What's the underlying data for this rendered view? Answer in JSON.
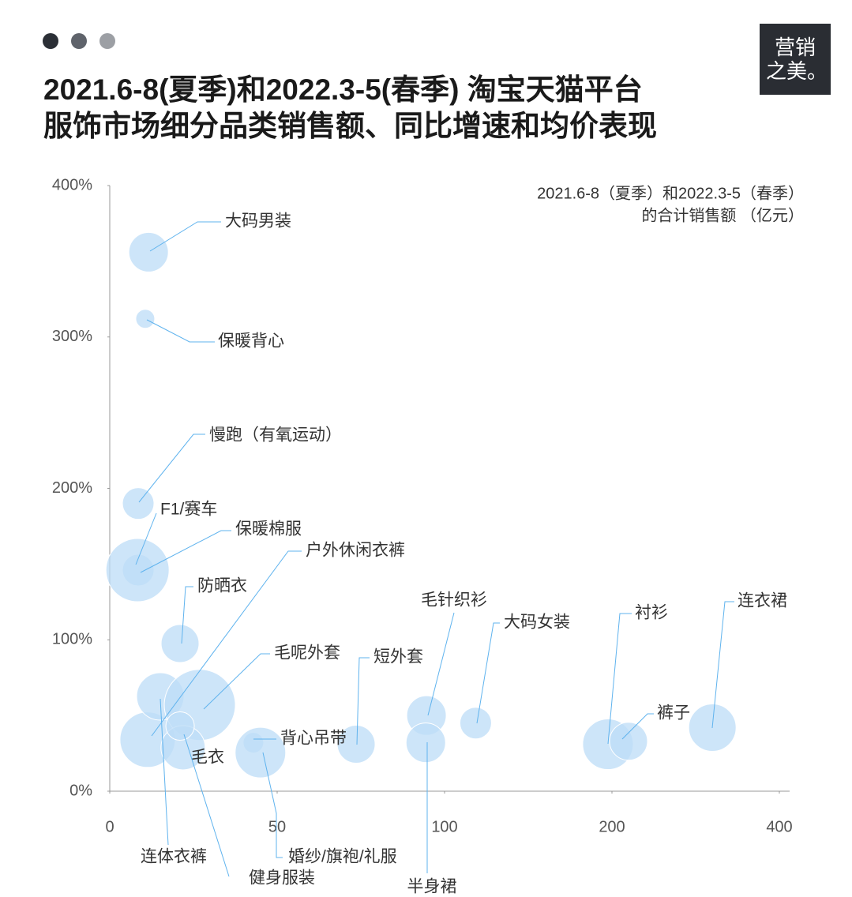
{
  "logo": [
    "营销",
    "之美。"
  ],
  "chart_data": {
    "type": "bubble",
    "title": [
      "2021.6-8(夏季)和2022.3-5(春季) 淘宝天猫平台",
      "服饰市场细分品类销售额、同比增速和均价表现"
    ],
    "note": [
      "2021.6-8（夏季）和2022.3-5（春季）",
      "的合计销售额 （亿元）"
    ],
    "color": "#bcdcf7",
    "categories": [
      "大码男装",
      "保暖背心",
      "慢跑（有氧运动）",
      "F1/赛车",
      "保暖棉服",
      "户外休闲衣裤",
      "防晒衣",
      "连体衣裤",
      "毛呢外套",
      "毛衣",
      "健身服装",
      "背心吊带",
      "婚纱/旗袍/礼服",
      "短外套",
      "毛针织衫",
      "半身裙",
      "大码女装",
      "衬衫",
      "裤子",
      "连衣裙"
    ],
    "x": [
      11.6,
      10.6,
      8.5,
      8.5,
      8.3,
      11.3,
      21,
      15.1,
      26.9,
      21.9,
      21,
      42.9,
      45,
      73.6,
      94.6,
      94.4,
      118.6,
      197.6,
      219.8,
      320
    ],
    "values": [
      356,
      312,
      190,
      146,
      146,
      34,
      97.5,
      62.6,
      57,
      28.7,
      43,
      32,
      25.5,
      31,
      50,
      32,
      45,
      31,
      33,
      42
    ],
    "sizes": [
      25,
      12,
      20,
      20,
      40,
      35,
      24,
      30,
      45,
      28,
      18,
      13,
      32,
      24,
      25,
      25,
      20,
      32,
      24,
      30
    ],
    "xlim": [
      0,
      400
    ],
    "xticks": [
      0,
      50,
      100,
      200,
      400
    ],
    "ylim": [
      0,
      400
    ],
    "yticks": [
      {
        "value": 0,
        "label": "0%"
      },
      {
        "value": 100,
        "label": "100%"
      },
      {
        "value": 200,
        "label": "200%"
      },
      {
        "value": 300,
        "label": "300%"
      },
      {
        "value": 400,
        "label": "400%"
      }
    ]
  }
}
